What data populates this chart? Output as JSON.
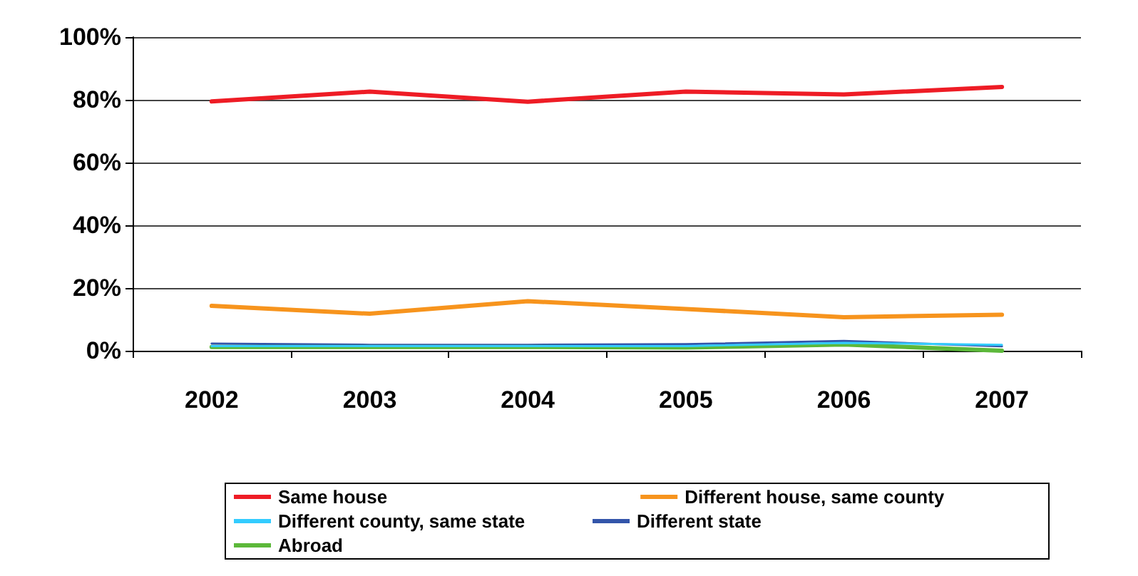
{
  "chart_data": {
    "type": "line",
    "categories": [
      "2002",
      "2003",
      "2004",
      "2005",
      "2006",
      "2007"
    ],
    "series": [
      {
        "name": "Same house",
        "color": "#ee1c25",
        "values": [
          79.5,
          82.6,
          79.4,
          82.6,
          81.7,
          84.1
        ]
      },
      {
        "name": "Different house, same county",
        "color": "#f7941d",
        "values": [
          14.3,
          11.8,
          15.8,
          13.3,
          10.7,
          11.5
        ]
      },
      {
        "name": "Different county, same state",
        "color": "#33ccff",
        "values": [
          1.5,
          1.5,
          1.5,
          1.5,
          2.5,
          1.9
        ]
      },
      {
        "name": "Different state",
        "color": "#3355aa",
        "values": [
          2.3,
          1.9,
          1.9,
          2.1,
          3.1,
          1.4
        ]
      },
      {
        "name": "Abroad",
        "color": "#5cb83a",
        "values": [
          1.2,
          1.2,
          1.2,
          1.0,
          2.0,
          0
        ]
      }
    ],
    "ylim": [
      0,
      100
    ],
    "yticks": [
      {
        "value": 0,
        "label": "0%"
      },
      {
        "value": 20,
        "label": "20%"
      },
      {
        "value": 40,
        "label": "40%"
      },
      {
        "value": 60,
        "label": "60%"
      },
      {
        "value": 80,
        "label": "80%"
      },
      {
        "value": 100,
        "label": "100%"
      }
    ],
    "grid": "y",
    "legend": "bottom",
    "marker": "none",
    "line_style": "solid"
  }
}
